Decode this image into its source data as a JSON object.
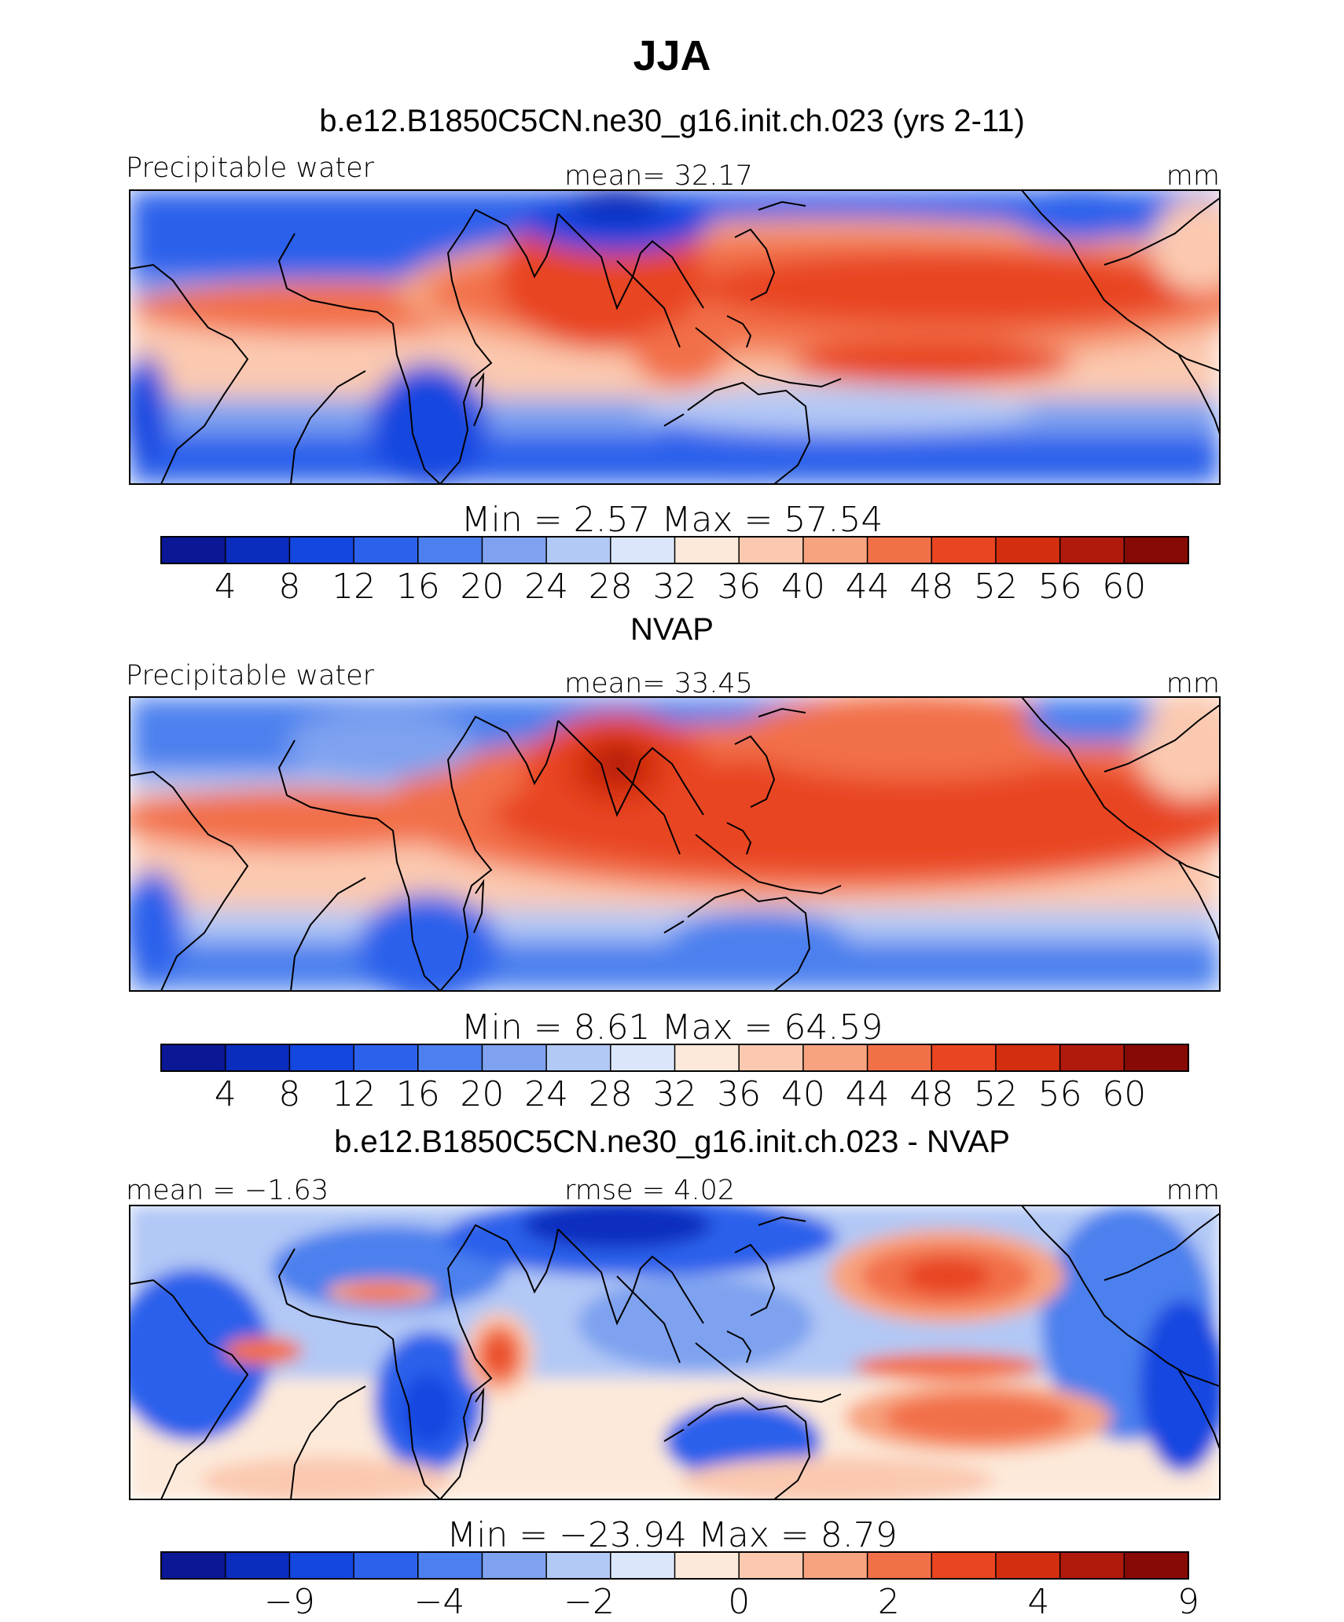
{
  "figure_title": "JJA",
  "colors": {
    "palette": [
      "#0a1896",
      "#0a2dbf",
      "#1446e0",
      "#2c61eb",
      "#4c80ee",
      "#7ea2f0",
      "#b2c8f5",
      "#dbe6fa",
      "#fde9d9",
      "#fbc9b0",
      "#f7a37f",
      "#f27048",
      "#e84520",
      "#d42e10",
      "#b01a0c",
      "#880a06"
    ]
  },
  "panels": [
    {
      "title": "b.e12.B1850C5CN.ne30_g16.init.ch.023 (yrs 2-11)",
      "left_label": "Precipitable water",
      "center_label": "mean=   32.17",
      "right_label": "mm",
      "minmax": "Min  =     2.57  Max  =    57.54",
      "colorbar_ticks": [
        "4",
        "8",
        "12",
        "16",
        "20",
        "24",
        "28",
        "32",
        "36",
        "40",
        "44",
        "48",
        "52",
        "56",
        "60"
      ]
    },
    {
      "title": "NVAP",
      "left_label": "Precipitable water",
      "center_label": "mean=   33.45",
      "right_label": "mm",
      "minmax": "Min  =     8.61  Max  =    64.59",
      "colorbar_ticks": [
        "4",
        "8",
        "12",
        "16",
        "20",
        "24",
        "28",
        "32",
        "36",
        "40",
        "44",
        "48",
        "52",
        "56",
        "60"
      ]
    },
    {
      "title": "b.e12.B1850C5CN.ne30_g16.init.ch.023 - NVAP",
      "left_label": "mean  =   −1.63",
      "center_label": "rmse  =     4.02",
      "right_label": "mm",
      "minmax": "Min  =  −23.94  Max  =     8.79",
      "colorbar_ticks": [
        "−9",
        "−4",
        "−2",
        "0",
        "2",
        "4",
        "9"
      ]
    }
  ],
  "chart_data": [
    {
      "type": "heatmap",
      "title": "b.e12.B1850C5CN.ne30_g16.init.ch.023 (yrs 2-11)",
      "variable": "Precipitable water",
      "units": "mm",
      "mean": 32.17,
      "min": 2.57,
      "max": 57.54,
      "levels": [
        4,
        8,
        12,
        16,
        20,
        24,
        28,
        32,
        36,
        40,
        44,
        48,
        52,
        56,
        60
      ]
    },
    {
      "type": "heatmap",
      "title": "NVAP",
      "variable": "Precipitable water",
      "units": "mm",
      "mean": 33.45,
      "min": 8.61,
      "max": 64.59,
      "levels": [
        4,
        8,
        12,
        16,
        20,
        24,
        28,
        32,
        36,
        40,
        44,
        48,
        52,
        56,
        60
      ]
    },
    {
      "type": "heatmap",
      "title": "b.e12.B1850C5CN.ne30_g16.init.ch.023 - NVAP",
      "units": "mm",
      "mean": -1.63,
      "rmse": 4.02,
      "min": -23.94,
      "max": 8.79,
      "levels": [
        -9,
        -4,
        -2,
        0,
        2,
        4,
        9
      ]
    }
  ]
}
